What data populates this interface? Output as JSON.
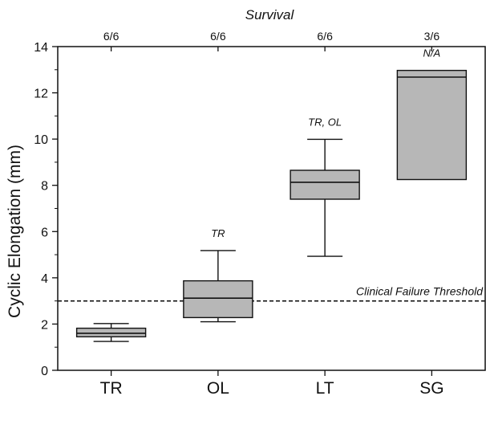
{
  "chart_data": {
    "type": "box",
    "top_title": "Survival",
    "ylabel": "Cyclic Elongation (mm)",
    "xlabel": "",
    "ylim": [
      0,
      14
    ],
    "yticks": [
      0,
      2,
      4,
      6,
      8,
      10,
      12,
      14
    ],
    "categories": [
      "TR",
      "OL",
      "LT",
      "SG"
    ],
    "boxes": [
      {
        "category": "TR",
        "whisker_low": 1.25,
        "q1": 1.45,
        "median": 1.6,
        "q3": 1.82,
        "whisker_high": 2.02,
        "survival": "6/6",
        "annotation": ""
      },
      {
        "category": "OL",
        "whisker_low": 2.1,
        "q1": 2.28,
        "median": 3.12,
        "q3": 3.87,
        "whisker_high": 5.18,
        "survival": "6/6",
        "annotation": "TR"
      },
      {
        "category": "LT",
        "whisker_low": 4.93,
        "q1": 7.4,
        "median": 8.13,
        "q3": 8.65,
        "whisker_high": 9.99,
        "survival": "6/6",
        "annotation": "TR, OL"
      },
      {
        "category": "SG",
        "whisker_low": 8.25,
        "q1": 8.25,
        "median": 12.68,
        "q3": 12.97,
        "whisker_high": 12.97,
        "survival": "3/6",
        "annotation": "N/A"
      }
    ],
    "reference_line": {
      "y": 3.0,
      "label": "Clinical Failure Threshold",
      "style": "dashed"
    },
    "box_color": "#b7b7b7",
    "line_color": "#111111"
  }
}
